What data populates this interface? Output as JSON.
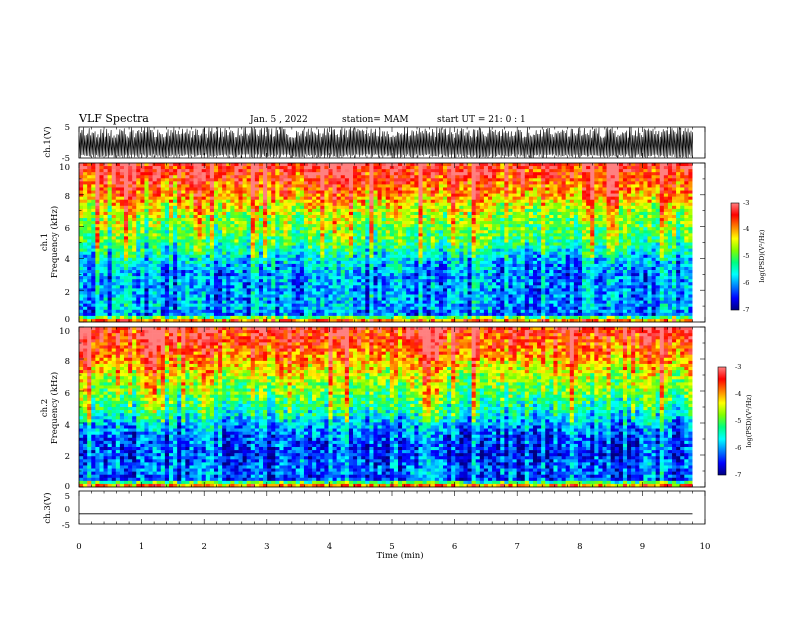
{
  "header": {
    "title": "VLF Spectra",
    "date": "Jan. 5 , 2022",
    "station": "station= MAM",
    "start": "start UT = 21: 0 : 1"
  },
  "colors": {
    "colormap": [
      "#000080",
      "#0000ff",
      "#0080ff",
      "#00ffff",
      "#00ff80",
      "#80ff00",
      "#ffff00",
      "#ff8000",
      "#ff0000",
      "#ff8080",
      "#ffffff"
    ]
  },
  "chart_data": [
    {
      "type": "line",
      "panel": "ch.1 waveform",
      "ylabel": "ch.1(V)",
      "ylim": [
        -5,
        5
      ],
      "yticks": [
        "5",
        "-5"
      ],
      "xlim": [
        0,
        10
      ],
      "description_values": {
        "envelope_min": -5,
        "envelope_max": 5,
        "baseline": -3
      }
    },
    {
      "type": "heatmap",
      "panel": "ch.1 spectrogram",
      "ylabel_top": "ch.1",
      "ylabel": "Frequency (kHz)",
      "ylim": [
        0,
        10
      ],
      "yticks": [
        "0",
        "2",
        "4",
        "6",
        "8",
        "10"
      ],
      "xlim": [
        0,
        9.8
      ],
      "colorbar": {
        "label": "log(PSD)(V²/Hz)",
        "range": [
          -7,
          -3
        ],
        "ticks": [
          "-3",
          "-4",
          "-5",
          "-6",
          "-7"
        ]
      },
      "profile": {
        "freq_khz": [
          0,
          0.5,
          1,
          2,
          3,
          4,
          5,
          6,
          7,
          8,
          9,
          10
        ],
        "log_psd": [
          -3.4,
          -6.3,
          -6.0,
          -6.1,
          -6.1,
          -5.8,
          -5.2,
          -4.9,
          -4.6,
          -4.0,
          -3.6,
          -3.3
        ]
      }
    },
    {
      "type": "heatmap",
      "panel": "ch.2 spectrogram",
      "ylabel_top": "ch.2",
      "ylabel": "Frequency (kHz)",
      "ylim": [
        0,
        10
      ],
      "yticks": [
        "0",
        "2",
        "4",
        "6",
        "8",
        "10"
      ],
      "xlim": [
        0,
        9.8
      ],
      "colorbar": {
        "label": "log(PSD)(V²/Hz)",
        "range": [
          -7,
          -3
        ],
        "ticks": [
          "-3",
          "-4",
          "-5",
          "-6",
          "-7"
        ]
      },
      "profile": {
        "freq_khz": [
          0,
          0.5,
          1,
          2,
          3,
          4,
          5,
          6,
          7,
          8,
          9,
          10
        ],
        "log_psd": [
          -3.4,
          -6.4,
          -6.2,
          -6.4,
          -6.3,
          -5.9,
          -5.3,
          -4.9,
          -4.5,
          -4.0,
          -3.6,
          -3.3
        ]
      }
    },
    {
      "type": "line",
      "panel": "ch.3 waveform",
      "ylabel": "ch.3(V)",
      "ylim": [
        -5,
        5
      ],
      "yticks": [
        "5",
        "0",
        "-5"
      ],
      "xlim": [
        0,
        10
      ],
      "x": [
        0,
        9.8
      ],
      "y": [
        -1.9,
        -1.9
      ]
    }
  ],
  "xaxis": {
    "label": "Time (min)",
    "ticks": [
      "0",
      "1",
      "2",
      "3",
      "4",
      "5",
      "6",
      "7",
      "8",
      "9",
      "10"
    ],
    "range": [
      0,
      10
    ]
  }
}
